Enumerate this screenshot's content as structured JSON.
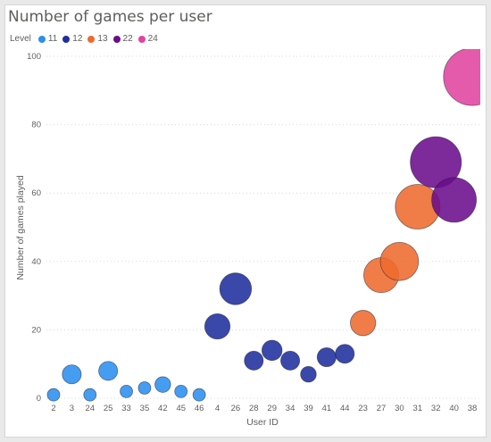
{
  "colors": {
    "11": "#2b8ff0",
    "12": "#1f2f9e",
    "13": "#ee6b2e",
    "22": "#6b0d8c",
    "24": "#e0449f"
  },
  "chart_data": {
    "type": "scatter",
    "title": "Number of games per user",
    "legend_title": "Level",
    "legend": [
      "11",
      "12",
      "13",
      "22",
      "24"
    ],
    "xlabel": "User ID",
    "ylabel": "Number of games played",
    "ylim": [
      0,
      100
    ],
    "yticks": [
      0,
      20,
      40,
      60,
      80,
      100
    ],
    "categories": [
      "2",
      "3",
      "24",
      "25",
      "33",
      "35",
      "42",
      "45",
      "46",
      "4",
      "26",
      "28",
      "29",
      "34",
      "39",
      "41",
      "44",
      "23",
      "27",
      "30",
      "31",
      "32",
      "40",
      "38"
    ],
    "points": [
      {
        "x": "2",
        "y": 1,
        "level": "11",
        "size": 1
      },
      {
        "x": "3",
        "y": 7,
        "level": "11",
        "size": 2
      },
      {
        "x": "24",
        "y": 1,
        "level": "11",
        "size": 1
      },
      {
        "x": "25",
        "y": 8,
        "level": "11",
        "size": 2
      },
      {
        "x": "33",
        "y": 2,
        "level": "11",
        "size": 1
      },
      {
        "x": "35",
        "y": 3,
        "level": "11",
        "size": 1
      },
      {
        "x": "42",
        "y": 4,
        "level": "11",
        "size": 1.5
      },
      {
        "x": "45",
        "y": 2,
        "level": "11",
        "size": 1
      },
      {
        "x": "46",
        "y": 1,
        "level": "11",
        "size": 1
      },
      {
        "x": "4",
        "y": 21,
        "level": "12",
        "size": 3
      },
      {
        "x": "26",
        "y": 32,
        "level": "12",
        "size": 4
      },
      {
        "x": "28",
        "y": 11,
        "level": "12",
        "size": 2
      },
      {
        "x": "29",
        "y": 14,
        "level": "12",
        "size": 2.2
      },
      {
        "x": "34",
        "y": 11,
        "level": "12",
        "size": 2
      },
      {
        "x": "39",
        "y": 7,
        "level": "12",
        "size": 1.5
      },
      {
        "x": "41",
        "y": 12,
        "level": "12",
        "size": 2
      },
      {
        "x": "44",
        "y": 13,
        "level": "12",
        "size": 2
      },
      {
        "x": "23",
        "y": 22,
        "level": "13",
        "size": 3
      },
      {
        "x": "27",
        "y": 36,
        "level": "13",
        "size": 4.5
      },
      {
        "x": "30",
        "y": 40,
        "level": "13",
        "size": 5
      },
      {
        "x": "31",
        "y": 56,
        "level": "13",
        "size": 6
      },
      {
        "x": "32",
        "y": 69,
        "level": "22",
        "size": 7
      },
      {
        "x": "40",
        "y": 58,
        "level": "22",
        "size": 6
      },
      {
        "x": "38",
        "y": 94,
        "level": "24",
        "size": 8
      }
    ]
  }
}
